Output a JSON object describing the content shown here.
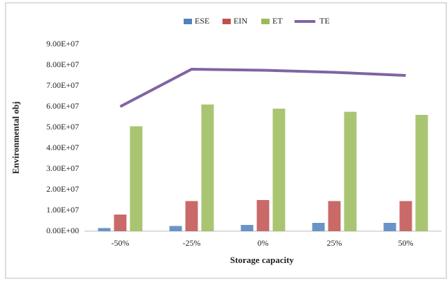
{
  "chart_data": {
    "type": "bar",
    "categories": [
      "-50%",
      "-25%",
      "0%",
      "25%",
      "50%"
    ],
    "x_label": "Storage capacity",
    "y_label": "Environmental obj",
    "ylim": [
      0,
      90000000
    ],
    "yticks": [
      {
        "value": 0,
        "label": "0.00E+00"
      },
      {
        "value": 10000000,
        "label": "1.00E+07"
      },
      {
        "value": 20000000,
        "label": "2.00E+07"
      },
      {
        "value": 30000000,
        "label": "3.00E+07"
      },
      {
        "value": 40000000,
        "label": "4.00E+07"
      },
      {
        "value": 50000000,
        "label": "5.00E+07"
      },
      {
        "value": 60000000,
        "label": "6.00E+07"
      },
      {
        "value": 70000000,
        "label": "7.00E+07"
      },
      {
        "value": 80000000,
        "label": "8.00E+07"
      },
      {
        "value": 90000000,
        "label": "9.00E+07"
      }
    ],
    "grid": false,
    "legend": "top",
    "series": [
      {
        "name": "ESE",
        "type": "bar",
        "color": "#4f81bd",
        "values": [
          1500000,
          2500000,
          3000000,
          4000000,
          4000000
        ]
      },
      {
        "name": "EIN",
        "type": "bar",
        "color": "#c0504d",
        "values": [
          8000000,
          14500000,
          15000000,
          14500000,
          14500000
        ]
      },
      {
        "name": "ET",
        "type": "bar",
        "color": "#9bbb59",
        "values": [
          50500000,
          61000000,
          59000000,
          57500000,
          56000000
        ]
      },
      {
        "name": "TE",
        "type": "line",
        "color": "#8064a2",
        "values": [
          60000000,
          78000000,
          77500000,
          76500000,
          75000000
        ]
      }
    ]
  }
}
